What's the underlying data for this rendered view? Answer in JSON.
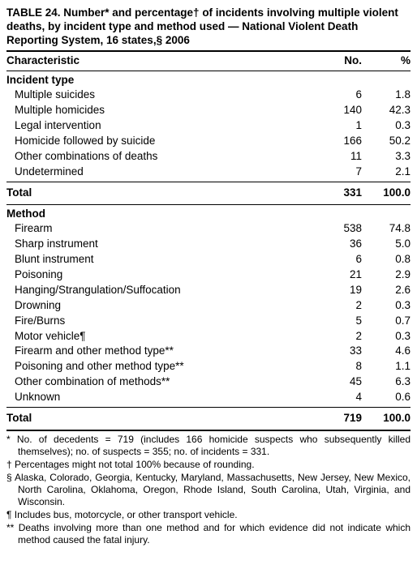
{
  "title": "TABLE 24. Number* and percentage† of incidents involving multiple violent deaths, by incident type and method used — National Violent Death Reporting System, 16 states,§ 2006",
  "headers": {
    "characteristic": "Characteristic",
    "no": "No.",
    "pct": "%"
  },
  "sections": [
    {
      "label": "Incident type",
      "rows": [
        {
          "label": "Multiple suicides",
          "no": "6",
          "pct": "1.8"
        },
        {
          "label": "Multiple homicides",
          "no": "140",
          "pct": "42.3"
        },
        {
          "label": "Legal intervention",
          "no": "1",
          "pct": "0.3"
        },
        {
          "label": "Homicide followed by suicide",
          "no": "166",
          "pct": "50.2"
        },
        {
          "label": "Other combinations of deaths",
          "no": "11",
          "pct": "3.3"
        },
        {
          "label": "Undetermined",
          "no": "7",
          "pct": "2.1"
        }
      ],
      "total": {
        "label": "Total",
        "no": "331",
        "pct": "100.0"
      }
    },
    {
      "label": "Method",
      "rows": [
        {
          "label": "Firearm",
          "no": "538",
          "pct": "74.8"
        },
        {
          "label": "Sharp instrument",
          "no": "36",
          "pct": "5.0"
        },
        {
          "label": "Blunt instrument",
          "no": "6",
          "pct": "0.8"
        },
        {
          "label": "Poisoning",
          "no": "21",
          "pct": "2.9"
        },
        {
          "label": "Hanging/Strangulation/Suffocation",
          "no": "19",
          "pct": "2.6"
        },
        {
          "label": "Drowning",
          "no": "2",
          "pct": "0.3"
        },
        {
          "label": "Fire/Burns",
          "no": "5",
          "pct": "0.7"
        },
        {
          "label": "Motor vehicle¶",
          "no": "2",
          "pct": "0.3"
        },
        {
          "label": "Firearm and other method type**",
          "no": "33",
          "pct": "4.6"
        },
        {
          "label": "Poisoning and other method type**",
          "no": "8",
          "pct": "1.1"
        },
        {
          "label": "Other combination of methods**",
          "no": "45",
          "pct": "6.3"
        },
        {
          "label": "Unknown",
          "no": "4",
          "pct": "0.6"
        }
      ],
      "total": {
        "label": "Total",
        "no": "719",
        "pct": "100.0"
      }
    }
  ],
  "footnotes": [
    "* No. of decedents = 719 (includes 166 homicide suspects who subsequently killed themselves); no. of suspects = 355; no. of incidents = 331.",
    "† Percentages might not total 100% because of rounding.",
    "§ Alaska, Colorado, Georgia, Kentucky, Maryland, Massachusetts, New Jersey, New Mexico, North Carolina, Oklahoma, Oregon, Rhode Island, South Carolina, Utah, Virginia, and Wisconsin.",
    "¶ Includes bus, motorcycle, or other transport vehicle.",
    "** Deaths involving more than one method and for which evidence did not indicate which method caused the fatal injury."
  ]
}
